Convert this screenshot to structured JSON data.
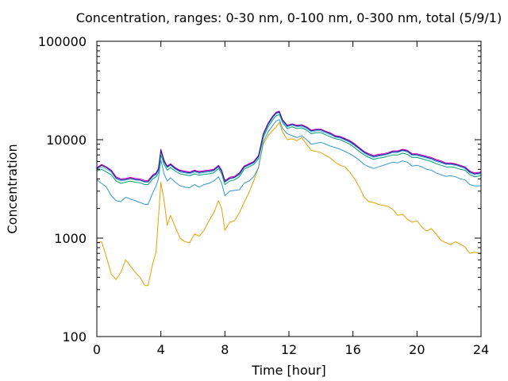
{
  "chart_data": {
    "type": "line",
    "title": "Concentration, ranges: 0-30 nm, 0-100 nm, 0-300 nm, total (5/9/1)",
    "xlabel": "Time [hour]",
    "ylabel": "Concentration",
    "xlim": [
      0,
      24
    ],
    "ylim": [
      100,
      100000
    ],
    "yscale": "log",
    "grid": false,
    "legend": "none",
    "x_ticks": [
      "0",
      "4",
      "8",
      "12",
      "16",
      "20",
      "24"
    ],
    "y_ticks": [
      "100",
      "1000",
      "10000",
      "100000"
    ],
    "series": [
      {
        "color": "#e8a000",
        "x": [
          0,
          0.3,
          0.6,
          0.9,
          1.2,
          1.5,
          1.8,
          2.1,
          2.4,
          2.7,
          3.0,
          3.2,
          3.5,
          3.7,
          3.85,
          4.0,
          4.2,
          4.4,
          4.6,
          4.9,
          5.2,
          5.5,
          5.8,
          6.1,
          6.4,
          6.7,
          7.0,
          7.3,
          7.6,
          7.8,
          8.0,
          8.3,
          8.6,
          8.9,
          9.2,
          9.5,
          9.8,
          10.1,
          10.4,
          10.7,
          11.0,
          11.2,
          11.4,
          11.6,
          11.9,
          12.2,
          12.5,
          12.8,
          13.1,
          13.4,
          13.7,
          14.0,
          14.3,
          14.6,
          14.9,
          15.2,
          15.5,
          15.8,
          16.1,
          16.4,
          16.7,
          17.0,
          17.3,
          17.6,
          17.9,
          18.2,
          18.5,
          18.8,
          19.1,
          19.4,
          19.7,
          20.0,
          20.3,
          20.6,
          20.9,
          21.2,
          21.5,
          21.8,
          22.1,
          22.4,
          22.7,
          23.0,
          23.3,
          23.6,
          24
        ],
        "values": [
          900,
          920,
          640,
          430,
          380,
          450,
          600,
          520,
          450,
          400,
          330,
          330,
          560,
          720,
          1600,
          3700,
          2400,
          1350,
          1700,
          1300,
          1000,
          920,
          900,
          1100,
          1050,
          1200,
          1500,
          1800,
          2400,
          2000,
          1200,
          1450,
          1500,
          1800,
          2300,
          2900,
          3800,
          5200,
          9000,
          11000,
          12500,
          13500,
          15000,
          12000,
          10000,
          10200,
          9800,
          10500,
          9000,
          7800,
          7600,
          7400,
          6900,
          6500,
          5900,
          5500,
          5300,
          4700,
          4000,
          3300,
          2600,
          2350,
          2300,
          2200,
          2150,
          2100,
          1950,
          1700,
          1750,
          1550,
          1450,
          1500,
          1300,
          1180,
          1250,
          1100,
          950,
          900,
          860,
          920,
          870,
          810,
          700,
          720,
          690
        ]
      },
      {
        "color": "#3399cc",
        "x": [
          0,
          0.3,
          0.6,
          0.9,
          1.2,
          1.5,
          1.8,
          2.1,
          2.4,
          2.7,
          3.0,
          3.2,
          3.5,
          3.7,
          3.85,
          4.0,
          4.2,
          4.4,
          4.6,
          4.9,
          5.2,
          5.5,
          5.8,
          6.1,
          6.4,
          6.7,
          7.0,
          7.3,
          7.6,
          7.8,
          8.0,
          8.3,
          8.6,
          8.9,
          9.2,
          9.5,
          9.8,
          10.1,
          10.4,
          10.7,
          11.0,
          11.2,
          11.4,
          11.6,
          11.9,
          12.2,
          12.5,
          12.8,
          13.1,
          13.4,
          13.7,
          14.0,
          14.3,
          14.6,
          14.9,
          15.2,
          15.5,
          15.8,
          16.1,
          16.4,
          16.7,
          17.0,
          17.3,
          17.6,
          17.9,
          18.2,
          18.5,
          18.8,
          19.1,
          19.4,
          19.7,
          20.0,
          20.3,
          20.6,
          20.9,
          21.2,
          21.5,
          21.8,
          22.1,
          22.4,
          22.7,
          23.0,
          23.3,
          23.6,
          24
        ],
        "values": [
          3900,
          3600,
          3300,
          2700,
          2400,
          2350,
          2600,
          2500,
          2400,
          2300,
          2200,
          2200,
          2900,
          3400,
          4000,
          6200,
          4500,
          3800,
          4100,
          3700,
          3400,
          3300,
          3250,
          3500,
          3300,
          3500,
          3600,
          3800,
          4200,
          3600,
          2700,
          3000,
          3050,
          3100,
          3600,
          3800,
          4200,
          5200,
          9500,
          12000,
          14000,
          15500,
          16000,
          13000,
          11500,
          11000,
          10500,
          11000,
          10000,
          9000,
          9200,
          9400,
          9000,
          8600,
          8300,
          8000,
          7600,
          7200,
          6700,
          6200,
          5600,
          5300,
          5100,
          5300,
          5500,
          5700,
          5900,
          5800,
          6100,
          5900,
          5400,
          5500,
          5300,
          5000,
          4900,
          4600,
          4400,
          4250,
          4300,
          4200,
          4000,
          3900,
          3500,
          3400,
          3400
        ]
      },
      {
        "color": "#009e73",
        "x": [
          0,
          0.3,
          0.6,
          0.9,
          1.2,
          1.5,
          1.8,
          2.1,
          2.4,
          2.7,
          3.0,
          3.2,
          3.5,
          3.7,
          3.85,
          4.0,
          4.2,
          4.4,
          4.6,
          4.9,
          5.2,
          5.5,
          5.8,
          6.1,
          6.4,
          6.7,
          7.0,
          7.3,
          7.6,
          7.8,
          8.0,
          8.3,
          8.6,
          8.9,
          9.2,
          9.5,
          9.8,
          10.1,
          10.4,
          10.7,
          11.0,
          11.2,
          11.4,
          11.6,
          11.9,
          12.2,
          12.5,
          12.8,
          13.1,
          13.4,
          13.7,
          14.0,
          14.3,
          14.6,
          14.9,
          15.2,
          15.5,
          15.8,
          16.1,
          16.4,
          16.7,
          17.0,
          17.3,
          17.6,
          17.9,
          18.2,
          18.5,
          18.8,
          19.1,
          19.4,
          19.7,
          20.0,
          20.3,
          20.6,
          20.9,
          21.2,
          21.5,
          21.8,
          22.1,
          22.4,
          22.7,
          23.0,
          23.3,
          23.6,
          24
        ],
        "values": [
          4800,
          5000,
          4700,
          4400,
          3800,
          3600,
          3700,
          3800,
          3700,
          3650,
          3500,
          3500,
          4000,
          4200,
          4600,
          7000,
          5600,
          4900,
          5200,
          4800,
          4500,
          4400,
          4300,
          4500,
          4350,
          4450,
          4500,
          4600,
          5100,
          4500,
          3500,
          3800,
          3900,
          4200,
          5000,
          5300,
          5600,
          6400,
          10500,
          13500,
          16000,
          17500,
          18000,
          15000,
          13000,
          13500,
          13000,
          13200,
          12500,
          11500,
          11800,
          11800,
          11200,
          10700,
          10200,
          10000,
          9500,
          9000,
          8300,
          7600,
          7000,
          6600,
          6300,
          6500,
          6600,
          6800,
          7000,
          7000,
          7300,
          7100,
          6600,
          6600,
          6400,
          6200,
          6000,
          5700,
          5500,
          5300,
          5300,
          5200,
          5000,
          4900,
          4400,
          4200,
          4300
        ]
      },
      {
        "color": "#56b4e9",
        "x": [
          0,
          0.3,
          0.6,
          0.9,
          1.2,
          1.5,
          1.8,
          2.1,
          2.4,
          2.7,
          3.0,
          3.2,
          3.5,
          3.7,
          3.85,
          4.0,
          4.2,
          4.4,
          4.6,
          4.9,
          5.2,
          5.5,
          5.8,
          6.1,
          6.4,
          6.7,
          7.0,
          7.3,
          7.6,
          7.8,
          8.0,
          8.3,
          8.6,
          8.9,
          9.2,
          9.5,
          9.8,
          10.1,
          10.4,
          10.7,
          11.0,
          11.2,
          11.4,
          11.6,
          11.9,
          12.2,
          12.5,
          12.8,
          13.1,
          13.4,
          13.7,
          14.0,
          14.3,
          14.6,
          14.9,
          15.2,
          15.5,
          15.8,
          16.1,
          16.4,
          16.7,
          17.0,
          17.3,
          17.6,
          17.9,
          18.2,
          18.5,
          18.8,
          19.1,
          19.4,
          19.7,
          20.0,
          20.3,
          20.6,
          20.9,
          21.2,
          21.5,
          21.8,
          22.1,
          22.4,
          22.7,
          23.0,
          23.3,
          23.6,
          24
        ],
        "values": [
          5000,
          5300,
          5000,
          4700,
          4000,
          3800,
          3900,
          4000,
          3900,
          3850,
          3700,
          3700,
          4200,
          4400,
          4900,
          7600,
          5900,
          5200,
          5500,
          5000,
          4700,
          4600,
          4500,
          4700,
          4550,
          4650,
          4700,
          4800,
          5300,
          4700,
          3700,
          4000,
          4100,
          4400,
          5200,
          5500,
          5800,
          6700,
          11000,
          14200,
          16800,
          18300,
          18800,
          15500,
          13500,
          14000,
          13500,
          13700,
          13000,
          12000,
          12300,
          12300,
          11700,
          11200,
          10600,
          10400,
          9900,
          9400,
          8700,
          8000,
          7300,
          6900,
          6600,
          6800,
          6900,
          7100,
          7400,
          7400,
          7700,
          7500,
          6900,
          6900,
          6700,
          6500,
          6300,
          6000,
          5800,
          5600,
          5600,
          5500,
          5300,
          5100,
          4600,
          4400,
          4500
        ]
      },
      {
        "color": "#cc00cc",
        "x": [
          0,
          0.3,
          0.6,
          0.9,
          1.2,
          1.5,
          1.8,
          2.1,
          2.4,
          2.7,
          3.0,
          3.2,
          3.5,
          3.7,
          3.85,
          4.0,
          4.2,
          4.4,
          4.6,
          4.9,
          5.2,
          5.5,
          5.8,
          6.1,
          6.4,
          6.7,
          7.0,
          7.3,
          7.6,
          7.8,
          8.0,
          8.3,
          8.6,
          8.9,
          9.2,
          9.5,
          9.8,
          10.1,
          10.4,
          10.7,
          11.0,
          11.2,
          11.4,
          11.6,
          11.9,
          12.2,
          12.5,
          12.8,
          13.1,
          13.4,
          13.7,
          14.0,
          14.3,
          14.6,
          14.9,
          15.2,
          15.5,
          15.8,
          16.1,
          16.4,
          16.7,
          17.0,
          17.3,
          17.6,
          17.9,
          18.2,
          18.5,
          18.8,
          19.1,
          19.4,
          19.7,
          20.0,
          20.3,
          20.6,
          20.9,
          21.2,
          21.5,
          21.8,
          22.1,
          22.4,
          22.7,
          23.0,
          23.3,
          23.6,
          24
        ],
        "values": [
          5200,
          5600,
          5300,
          4900,
          4200,
          4000,
          4050,
          4150,
          4050,
          4000,
          3850,
          3850,
          4400,
          4600,
          5100,
          8000,
          6200,
          5400,
          5700,
          5200,
          4900,
          4800,
          4700,
          4900,
          4750,
          4850,
          4900,
          5000,
          5500,
          4900,
          3850,
          4150,
          4250,
          4600,
          5400,
          5700,
          6000,
          6900,
          11500,
          14800,
          17500,
          19000,
          19500,
          16000,
          14000,
          14500,
          14000,
          14200,
          13500,
          12500,
          12800,
          12800,
          12200,
          11700,
          11000,
          10800,
          10300,
          9800,
          9100,
          8300,
          7600,
          7200,
          6900,
          7100,
          7200,
          7400,
          7700,
          7700,
          8000,
          7800,
          7200,
          7200,
          7000,
          6800,
          6600,
          6300,
          6100,
          5800,
          5800,
          5700,
          5500,
          5300,
          4800,
          4600,
          4700
        ]
      },
      {
        "color": "#1a1a80",
        "x": [
          0,
          0.3,
          0.6,
          0.9,
          1.2,
          1.5,
          1.8,
          2.1,
          2.4,
          2.7,
          3.0,
          3.2,
          3.5,
          3.7,
          3.85,
          4.0,
          4.2,
          4.4,
          4.6,
          4.9,
          5.2,
          5.5,
          5.8,
          6.1,
          6.4,
          6.7,
          7.0,
          7.3,
          7.6,
          7.8,
          8.0,
          8.3,
          8.6,
          8.9,
          9.2,
          9.5,
          9.8,
          10.1,
          10.4,
          10.7,
          11.0,
          11.2,
          11.4,
          11.6,
          11.9,
          12.2,
          12.5,
          12.8,
          13.1,
          13.4,
          13.7,
          14.0,
          14.3,
          14.6,
          14.9,
          15.2,
          15.5,
          15.8,
          16.1,
          16.4,
          16.7,
          17.0,
          17.3,
          17.6,
          17.9,
          18.2,
          18.5,
          18.8,
          19.1,
          19.4,
          19.7,
          20.0,
          20.3,
          20.6,
          20.9,
          21.2,
          21.5,
          21.8,
          22.1,
          22.4,
          22.7,
          23.0,
          23.3,
          23.6,
          24
        ],
        "values": [
          5100,
          5500,
          5200,
          4800,
          4100,
          3900,
          3950,
          4050,
          3950,
          3900,
          3750,
          3750,
          4300,
          4500,
          5000,
          7800,
          6050,
          5300,
          5600,
          5100,
          4800,
          4700,
          4600,
          4800,
          4650,
          4750,
          4800,
          4900,
          5400,
          4800,
          3750,
          4050,
          4150,
          4500,
          5300,
          5600,
          5900,
          6800,
          11300,
          14500,
          17200,
          18700,
          19200,
          15800,
          13800,
          14300,
          13800,
          14000,
          13300,
          12300,
          12600,
          12600,
          12000,
          11500,
          10800,
          10600,
          10100,
          9600,
          8900,
          8150,
          7450,
          7050,
          6750,
          6950,
          7050,
          7250,
          7550,
          7550,
          7850,
          7650,
          7050,
          7050,
          6850,
          6650,
          6450,
          6150,
          5950,
          5700,
          5700,
          5600,
          5400,
          5200,
          4700,
          4500,
          4600
        ]
      }
    ]
  }
}
